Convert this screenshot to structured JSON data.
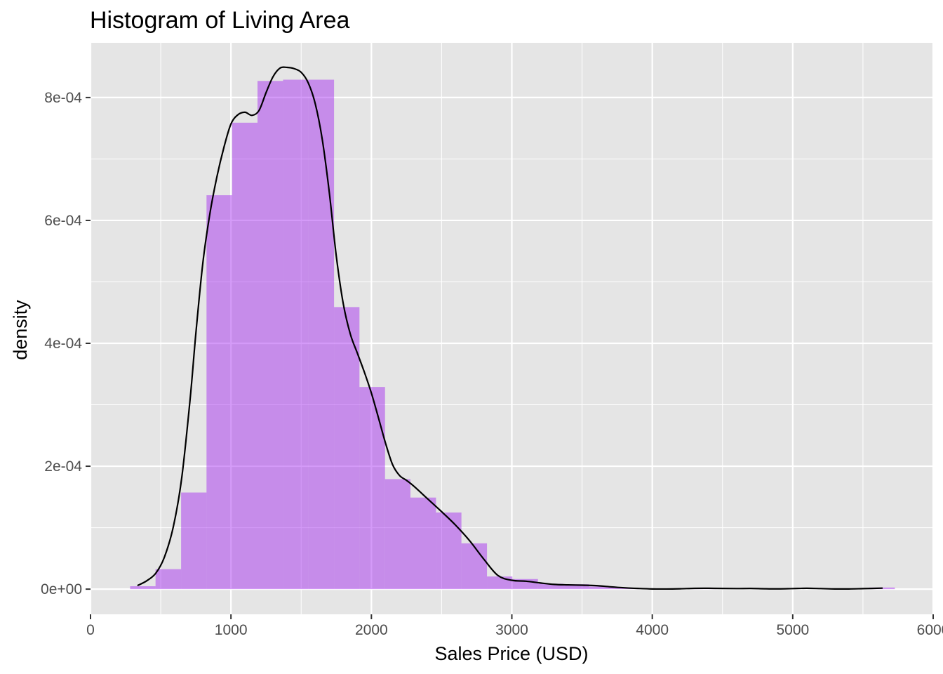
{
  "chart_data": {
    "type": "bar",
    "title": "Histogram of Living Area",
    "xlabel": "Sales Price (USD)",
    "ylabel": "density",
    "xlim": [
      0,
      6000
    ],
    "ylim": [
      -4.1e-05,
      0.000889
    ],
    "x_ticks": [
      0,
      1000,
      2000,
      3000,
      4000,
      5000,
      6000
    ],
    "x_tick_labels": [
      "0",
      "1000",
      "2000",
      "3000",
      "4000",
      "5000",
      "6000"
    ],
    "y_ticks": [
      0,
      0.0002,
      0.0004,
      0.0006,
      0.0008
    ],
    "y_tick_labels": [
      "0e+00",
      "2e-04",
      "4e-04",
      "6e-04",
      "8e-04"
    ],
    "grid": true,
    "legend": "none",
    "colors": {
      "panel": "#e5e5e5",
      "grid": "#ffffff",
      "bar_fill": "#a020f0",
      "bar_opacity": 0.45,
      "density_line": "#000000"
    },
    "bins": [
      {
        "x0": 282,
        "x1": 463,
        "density": 4.7e-06
      },
      {
        "x0": 463,
        "x1": 645,
        "density": 3.25e-05
      },
      {
        "x0": 645,
        "x1": 826,
        "density": 0.0001572
      },
      {
        "x0": 826,
        "x1": 1008,
        "density": 0.000641
      },
      {
        "x0": 1008,
        "x1": 1189,
        "density": 0.000759
      },
      {
        "x0": 1189,
        "x1": 1371,
        "density": 0.000827
      },
      {
        "x0": 1371,
        "x1": 1552,
        "density": 0.000829
      },
      {
        "x0": 1552,
        "x1": 1734,
        "density": 0.000829
      },
      {
        "x0": 1734,
        "x1": 1915,
        "density": 0.000459
      },
      {
        "x0": 1915,
        "x1": 2097,
        "density": 0.000329
      },
      {
        "x0": 2097,
        "x1": 2278,
        "density": 0.000179
      },
      {
        "x0": 2278,
        "x1": 2460,
        "density": 0.000149
      },
      {
        "x0": 2460,
        "x1": 2641,
        "density": 0.0001247
      },
      {
        "x0": 2641,
        "x1": 2823,
        "density": 7.45e-05
      },
      {
        "x0": 2823,
        "x1": 3004,
        "density": 2.06e-05
      },
      {
        "x0": 3004,
        "x1": 3186,
        "density": 1.64e-05
      },
      {
        "x0": 3186,
        "x1": 3367,
        "density": 8.8e-06
      },
      {
        "x0": 3367,
        "x1": 3549,
        "density": 7.9e-06
      },
      {
        "x0": 3549,
        "x1": 3730,
        "density": 4.2e-06
      },
      {
        "x0": 3730,
        "x1": 3912,
        "density": 2.3e-06
      },
      {
        "x0": 3912,
        "x1": 4093,
        "density": 0
      },
      {
        "x0": 4093,
        "x1": 4275,
        "density": 0
      },
      {
        "x0": 4275,
        "x1": 4456,
        "density": 1.7e-06
      },
      {
        "x0": 4456,
        "x1": 4638,
        "density": 0
      },
      {
        "x0": 4638,
        "x1": 4819,
        "density": 0
      },
      {
        "x0": 4819,
        "x1": 5001,
        "density": 0
      },
      {
        "x0": 5001,
        "x1": 5182,
        "density": 0
      },
      {
        "x0": 5182,
        "x1": 5364,
        "density": 0
      },
      {
        "x0": 5364,
        "x1": 5545,
        "density": 0
      },
      {
        "x0": 5545,
        "x1": 5727,
        "density": 2.6e-06
      }
    ],
    "density_curve": [
      [
        334,
        5.8e-06
      ],
      [
        400,
        1.35e-05
      ],
      [
        465,
        2.6e-05
      ],
      [
        526,
        5.2e-05
      ],
      [
        590,
        0.000102
      ],
      [
        650,
        0.000182
      ],
      [
        710,
        0.000311
      ],
      [
        750,
        0.000416
      ],
      [
        800,
        0.000531
      ],
      [
        850,
        0.000611
      ],
      [
        900,
        0.000671
      ],
      [
        950,
        0.000719
      ],
      [
        1000,
        0.000757
      ],
      [
        1050,
        0.000772
      ],
      [
        1100,
        0.000776
      ],
      [
        1150,
        0.000771
      ],
      [
        1200,
        0.000779
      ],
      [
        1250,
        0.000808
      ],
      [
        1300,
        0.000834
      ],
      [
        1350,
        0.000848
      ],
      [
        1400,
        0.000849
      ],
      [
        1450,
        0.000847
      ],
      [
        1500,
        0.000841
      ],
      [
        1550,
        0.000824
      ],
      [
        1600,
        0.00079
      ],
      [
        1650,
        0.000732
      ],
      [
        1700,
        0.000646
      ],
      [
        1750,
        0.000542
      ],
      [
        1800,
        0.000464
      ],
      [
        1850,
        0.000415
      ],
      [
        1900,
        0.000384
      ],
      [
        1950,
        0.000353
      ],
      [
        2000,
        0.000319
      ],
      [
        2050,
        0.000279
      ],
      [
        2100,
        0.000238
      ],
      [
        2150,
        0.000203
      ],
      [
        2200,
        0.000185
      ],
      [
        2250,
        0.000177
      ],
      [
        2300,
        0.000168
      ],
      [
        2400,
        0.000147
      ],
      [
        2500,
        0.000126
      ],
      [
        2600,
        0.000104
      ],
      [
        2700,
        7.86e-05
      ],
      [
        2800,
        4.89e-05
      ],
      [
        2900,
        2.24e-05
      ],
      [
        3000,
        1.44e-05
      ],
      [
        3100,
        1.29e-05
      ],
      [
        3200,
        1.01e-05
      ],
      [
        3300,
        7.7e-06
      ],
      [
        3400,
        6.9e-06
      ],
      [
        3500,
        6.4e-06
      ],
      [
        3600,
        5.7e-06
      ],
      [
        3700,
        3.8e-06
      ],
      [
        3800,
        2.2e-06
      ],
      [
        3900,
        1.1e-06
      ],
      [
        4000,
        3e-07
      ],
      [
        4100,
        2e-07
      ],
      [
        4200,
        6e-07
      ],
      [
        4300,
        1.3e-06
      ],
      [
        4400,
        1.4e-06
      ],
      [
        4500,
        1.1e-06
      ],
      [
        4600,
        9e-07
      ],
      [
        4700,
        1.1e-06
      ],
      [
        4800,
        6e-07
      ],
      [
        4900,
        4e-07
      ],
      [
        5000,
        9e-07
      ],
      [
        5100,
        1.4e-06
      ],
      [
        5200,
        9e-07
      ],
      [
        5300,
        3e-07
      ],
      [
        5400,
        3e-07
      ],
      [
        5500,
        8e-07
      ],
      [
        5640,
        1.6e-06
      ]
    ]
  }
}
